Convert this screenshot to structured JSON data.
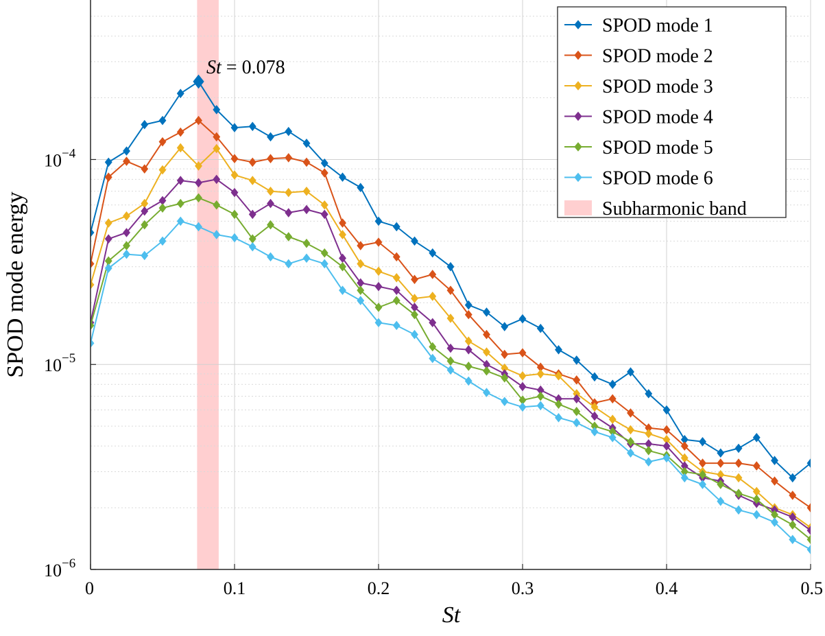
{
  "chart_data": {
    "type": "line",
    "xlabel": "St",
    "ylabel": "SPOD mode energy",
    "xlim": [
      0,
      0.5
    ],
    "ylim": [
      1e-06,
      0.0006
    ],
    "yscale": "log",
    "grid": true,
    "legend_position": "top-right",
    "x_ticks": [
      {
        "value": 0,
        "label": "0"
      },
      {
        "value": 0.1,
        "label": "0.1"
      },
      {
        "value": 0.2,
        "label": "0.2"
      },
      {
        "value": 0.3,
        "label": "0.3"
      },
      {
        "value": 0.4,
        "label": "0.4"
      },
      {
        "value": 0.5,
        "label": "0.5"
      }
    ],
    "y_ticks": [
      {
        "value": 1e-06,
        "base": "10",
        "exp": "−6"
      },
      {
        "value": 1e-05,
        "base": "10",
        "exp": "−5"
      },
      {
        "value": 0.0001,
        "base": "10",
        "exp": "−4"
      }
    ],
    "band": {
      "name": "Subharmonic band",
      "x0": 0.074,
      "x1": 0.089,
      "color": "#ffcfd0"
    },
    "annotation": {
      "var": "St",
      "text": " = 0.078",
      "x": 0.078
    },
    "x": [
      0,
      0.0125,
      0.025,
      0.0375,
      0.05,
      0.0625,
      0.075,
      0.0875,
      0.1,
      0.1125,
      0.125,
      0.1375,
      0.15,
      0.1625,
      0.175,
      0.1875,
      0.2,
      0.2125,
      0.225,
      0.2375,
      0.25,
      0.2625,
      0.275,
      0.2875,
      0.3,
      0.3125,
      0.325,
      0.3375,
      0.35,
      0.3625,
      0.375,
      0.3875,
      0.4,
      0.4125,
      0.425,
      0.4375,
      0.45,
      0.4625,
      0.475,
      0.4875,
      0.5
    ],
    "series": [
      {
        "name": "SPOD mode 1",
        "color": "#0072BD",
        "values": [
          4.4e-05,
          9.7e-05,
          0.00011,
          0.000148,
          0.000155,
          0.00021,
          0.00024,
          0.000175,
          0.000143,
          0.000145,
          0.000129,
          0.000137,
          0.00012,
          9.6e-05,
          8.2e-05,
          7.3e-05,
          5e-05,
          4.7e-05,
          4e-05,
          3.5e-05,
          3e-05,
          1.95e-05,
          1.8e-05,
          1.53e-05,
          1.67e-05,
          1.5e-05,
          1.18e-05,
          1.05e-05,
          8.7e-06,
          8e-06,
          9.2e-06,
          7.2e-06,
          6e-06,
          4.3e-06,
          4.2e-06,
          3.7e-06,
          3.9e-06,
          4.4e-06,
          3.4e-06,
          2.8e-06,
          3.3e-06
        ]
      },
      {
        "name": "SPOD mode 2",
        "color": "#D95319",
        "values": [
          3.1e-05,
          8.2e-05,
          9.8e-05,
          9e-05,
          0.000122,
          0.000136,
          0.000155,
          0.000129,
          0.000101,
          9.7e-05,
          0.000101,
          0.000102,
          9.7e-05,
          8.6e-05,
          4.9e-05,
          3.8e-05,
          3.95e-05,
          3.35e-05,
          2.6e-05,
          2.75e-05,
          2.3e-05,
          1.75e-05,
          1.4e-05,
          1.12e-05,
          1.14e-05,
          9.7e-06,
          9e-06,
          8.4e-06,
          6.5e-06,
          6.8e-06,
          5.8e-06,
          4.9e-06,
          4.8e-06,
          4e-06,
          3.3e-06,
          3.3e-06,
          3.3e-06,
          3.2e-06,
          2.7e-06,
          2.3e-06,
          2e-06
        ]
      },
      {
        "name": "SPOD mode 3",
        "color": "#EDB120",
        "values": [
          2.45e-05,
          4.9e-05,
          5.3e-05,
          6.1e-05,
          8.9e-05,
          0.000114,
          9.3e-05,
          0.000113,
          8.4e-05,
          7.9e-05,
          7e-05,
          6.9e-05,
          7e-05,
          6e-05,
          4.3e-05,
          3.1e-05,
          2.85e-05,
          2.65e-05,
          2.1e-05,
          2.15e-05,
          1.68e-05,
          1.3e-05,
          1.15e-05,
          9.6e-06,
          8.8e-06,
          9e-06,
          8.8e-06,
          7.2e-06,
          6.2e-06,
          5.4e-06,
          4.8e-06,
          4.6e-06,
          4.3e-06,
          3.5e-06,
          3e-06,
          2.9e-06,
          2.8e-06,
          2.4e-06,
          2e-06,
          1.85e-06,
          1.6e-06
        ]
      },
      {
        "name": "SPOD mode 4",
        "color": "#7E2F8E",
        "values": [
          1.6e-05,
          4.1e-05,
          4.4e-05,
          5.6e-05,
          6.3e-05,
          7.9e-05,
          7.7e-05,
          8e-05,
          6.9e-05,
          5.4e-05,
          6.1e-05,
          5.5e-05,
          5.7e-05,
          5.4e-05,
          3.3e-05,
          2.5e-05,
          2.4e-05,
          2.3e-05,
          1.9e-05,
          1.6e-05,
          1.2e-05,
          1.18e-05,
          1e-05,
          9e-06,
          7.8e-06,
          7.5e-06,
          6.8e-06,
          6.8e-06,
          5.6e-06,
          4.9e-06,
          4.1e-06,
          4.1e-06,
          4e-06,
          3.2e-06,
          2.8e-06,
          2.7e-06,
          2.3e-06,
          2.1e-06,
          1.95e-06,
          1.8e-06,
          1.55e-06
        ]
      },
      {
        "name": "SPOD mode 5",
        "color": "#77AC30",
        "values": [
          1.55e-05,
          3.2e-05,
          3.8e-05,
          4.8e-05,
          5.8e-05,
          6.1e-05,
          6.5e-05,
          6e-05,
          5.4e-05,
          4.1e-05,
          4.8e-05,
          4.2e-05,
          3.9e-05,
          3.5e-05,
          3e-05,
          2.3e-05,
          1.9e-05,
          2.05e-05,
          1.75e-05,
          1.22e-05,
          1.04e-05,
          9.8e-06,
          9.3e-06,
          8.6e-06,
          6.7e-06,
          7e-06,
          6.4e-06,
          5.9e-06,
          5e-06,
          4.7e-06,
          4.2e-06,
          3.8e-06,
          3.6e-06,
          3e-06,
          2.9e-06,
          2.6e-06,
          2.35e-06,
          2.2e-06,
          1.85e-06,
          1.65e-06,
          1.4e-06
        ]
      },
      {
        "name": "SPOD mode 6",
        "color": "#4DBEEE",
        "values": [
          1.27e-05,
          2.95e-05,
          3.45e-05,
          3.4e-05,
          4e-05,
          5e-05,
          4.7e-05,
          4.3e-05,
          4.15e-05,
          3.75e-05,
          3.35e-05,
          3.1e-05,
          3.3e-05,
          3.1e-05,
          2.3e-05,
          2.05e-05,
          1.6e-05,
          1.55e-05,
          1.4e-05,
          1.07e-05,
          9.4e-06,
          8.3e-06,
          7.3e-06,
          6.6e-06,
          6.2e-06,
          6.3e-06,
          5.5e-06,
          5.2e-06,
          4.7e-06,
          4.4e-06,
          3.7e-06,
          3.35e-06,
          3.5e-06,
          2.8e-06,
          2.6e-06,
          2.15e-06,
          1.95e-06,
          1.85e-06,
          1.7e-06,
          1.4e-06,
          1.25e-06
        ]
      }
    ],
    "highlight_index": 6
  }
}
